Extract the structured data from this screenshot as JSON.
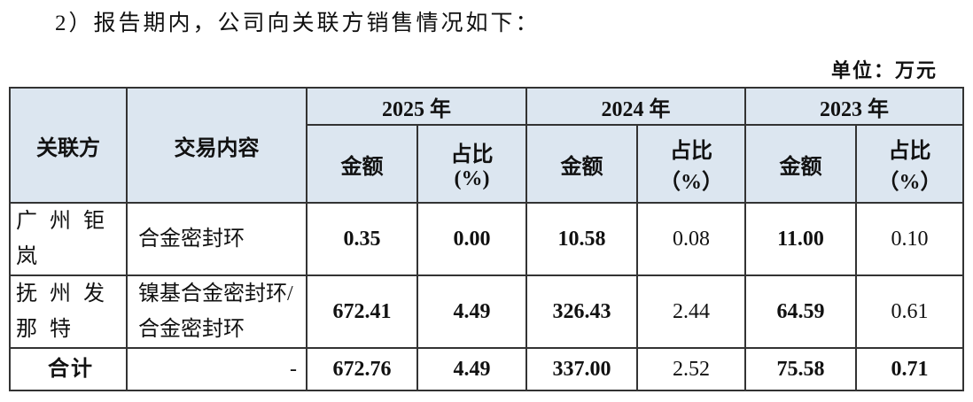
{
  "heading": "2）报告期内，公司向关联方销售情况如下：",
  "unit": "单位：万元",
  "table": {
    "header": {
      "party": "关联方",
      "content": "交易内容",
      "years": [
        {
          "year": "2025 年",
          "amount": "金额",
          "ratio": [
            "占比",
            "(%)"
          ]
        },
        {
          "year": "2024 年",
          "amount": "金额",
          "ratio": [
            "占比",
            "（%）"
          ]
        },
        {
          "year": "2023 年",
          "amount": "金额",
          "ratio": [
            "占比",
            "（%）"
          ]
        }
      ]
    },
    "rows": [
      [
        "广州钜岚",
        "合金密封环",
        "0.35",
        "0.00",
        "10.58",
        "0.08",
        "11.00",
        "0.10"
      ],
      [
        "抚州发那特",
        "镍基合金密封环/合金密封环",
        "672.41",
        "4.49",
        "326.43",
        "2.44",
        "64.59",
        "0.61"
      ],
      [
        "合计",
        "-",
        "672.76",
        "4.49",
        "337.00",
        "2.52",
        "75.58",
        "0.71"
      ]
    ]
  }
}
